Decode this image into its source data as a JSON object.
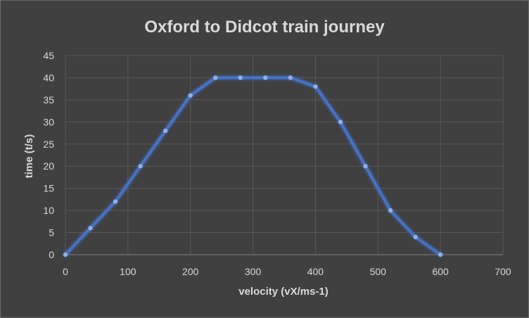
{
  "chart_data": {
    "type": "line",
    "title": "Oxford to Didcot train journey",
    "xlabel": "velocity (vX/ms-1)",
    "ylabel": "time (t/s)",
    "xlim": [
      0,
      700
    ],
    "ylim": [
      0,
      45
    ],
    "xticks": [
      0,
      100,
      200,
      300,
      400,
      500,
      600,
      700
    ],
    "yticks": [
      0,
      5,
      10,
      15,
      20,
      25,
      30,
      35,
      40,
      45
    ],
    "grid": true,
    "series": [
      {
        "x": [
          0,
          40,
          80,
          120,
          160,
          200,
          240,
          280,
          320,
          360,
          400,
          440,
          480,
          520,
          560,
          600
        ],
        "y": [
          0,
          6,
          12,
          20,
          28,
          36,
          40,
          40,
          40,
          40,
          38,
          30,
          20,
          10,
          4,
          0
        ]
      }
    ],
    "colors": {
      "line": "#4472c4",
      "marker": "#8fb0ea",
      "background": "#404040",
      "grid": "#595959",
      "text": "#d9d9d9"
    }
  }
}
